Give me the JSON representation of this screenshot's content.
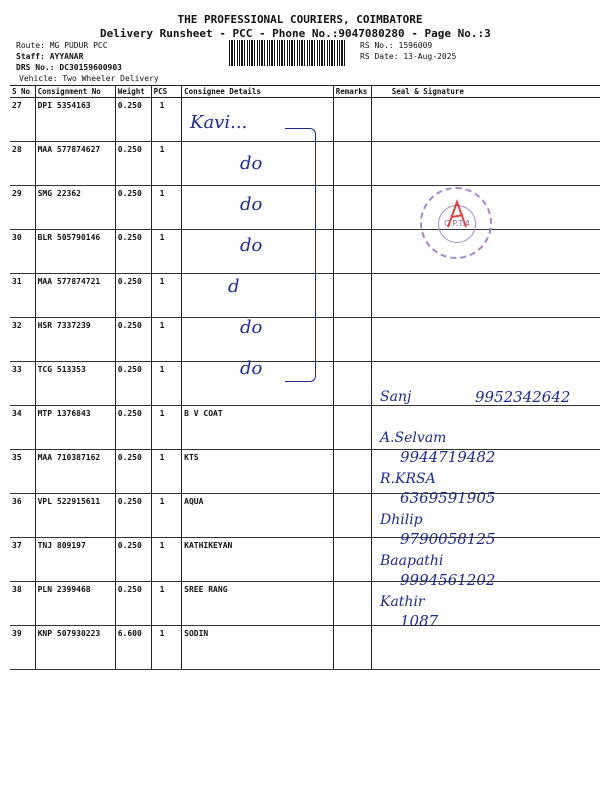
{
  "header": {
    "company": "THE PROFESSIONAL COURIERS, COIMBATORE",
    "subtitle": "Delivery Runsheet - PCC - Phone No.:9047080280 - Page No.:3",
    "route": "Route: MG PUDUR PCC",
    "staff": "Staff: AYYANAR",
    "drs_no": "DRS No.: DC30159600903",
    "vehicle": "Vehicle: Two Wheeler Delivery",
    "rs_no": "RS No.: 1596009",
    "rs_date": "RS Date: 13-Aug-2025"
  },
  "columns": [
    "S No",
    "Consignment No",
    "Weight",
    "PCS",
    "Consignee Details",
    "Remarks",
    "Seal & Signature"
  ],
  "rows": [
    {
      "sno": "27",
      "cn": "DPI 5354163",
      "weight": "0.250",
      "pcs": "1",
      "consignee": ""
    },
    {
      "sno": "28",
      "cn": "MAA 577874627",
      "weight": "0.250",
      "pcs": "1",
      "consignee": ""
    },
    {
      "sno": "29",
      "cn": "SMG 22362",
      "weight": "0.250",
      "pcs": "1",
      "consignee": ""
    },
    {
      "sno": "30",
      "cn": "BLR 505790146",
      "weight": "0.250",
      "pcs": "1",
      "consignee": ""
    },
    {
      "sno": "31",
      "cn": "MAA 577874721",
      "weight": "0.250",
      "pcs": "1",
      "consignee": ""
    },
    {
      "sno": "32",
      "cn": "HSR 7337239",
      "weight": "0.250",
      "pcs": "1",
      "consignee": ""
    },
    {
      "sno": "33",
      "cn": "TCG 513353",
      "weight": "0.250",
      "pcs": "1",
      "consignee": ""
    },
    {
      "sno": "34",
      "cn": "MTP 1376843",
      "weight": "0.250",
      "pcs": "1",
      "consignee": "B V COAT"
    },
    {
      "sno": "35",
      "cn": "MAA 710387162",
      "weight": "0.250",
      "pcs": "1",
      "consignee": "KTS"
    },
    {
      "sno": "36",
      "cn": "VPL 522915611",
      "weight": "0.250",
      "pcs": "1",
      "consignee": "AQUA"
    },
    {
      "sno": "37",
      "cn": "TNJ 809197",
      "weight": "0.250",
      "pcs": "1",
      "consignee": "KATHIKEYAN"
    },
    {
      "sno": "38",
      "cn": "PLN 2399468",
      "weight": "0.250",
      "pcs": "1",
      "consignee": "SREE RANG"
    },
    {
      "sno": "39",
      "cn": "KNP 507930223",
      "weight": "6.600",
      "pcs": "1",
      "consignee": "SODIN"
    }
  ],
  "handwriting": {
    "consignee_notes": [
      "Kavi...",
      "do",
      "do",
      "do",
      "d",
      "do",
      "do"
    ],
    "signatures": [
      {
        "name": "Sanj",
        "phone": "9952342642"
      },
      {
        "name": "A.Selvam",
        "phone": "9944719482"
      },
      {
        "name": "R.KRSA",
        "phone": "6369591905"
      },
      {
        "name": "Dhilip",
        "phone": "9790058125"
      },
      {
        "name": "Baapathi",
        "phone": "9994561202"
      },
      {
        "name": "Kathir",
        "phone": "1087"
      }
    ]
  },
  "stamp": {
    "text": "C.P.T.4"
  },
  "colors": {
    "ink": "#1e2a8c",
    "stamp": "#a48ac8",
    "stamp_mark": "#dd2222"
  }
}
